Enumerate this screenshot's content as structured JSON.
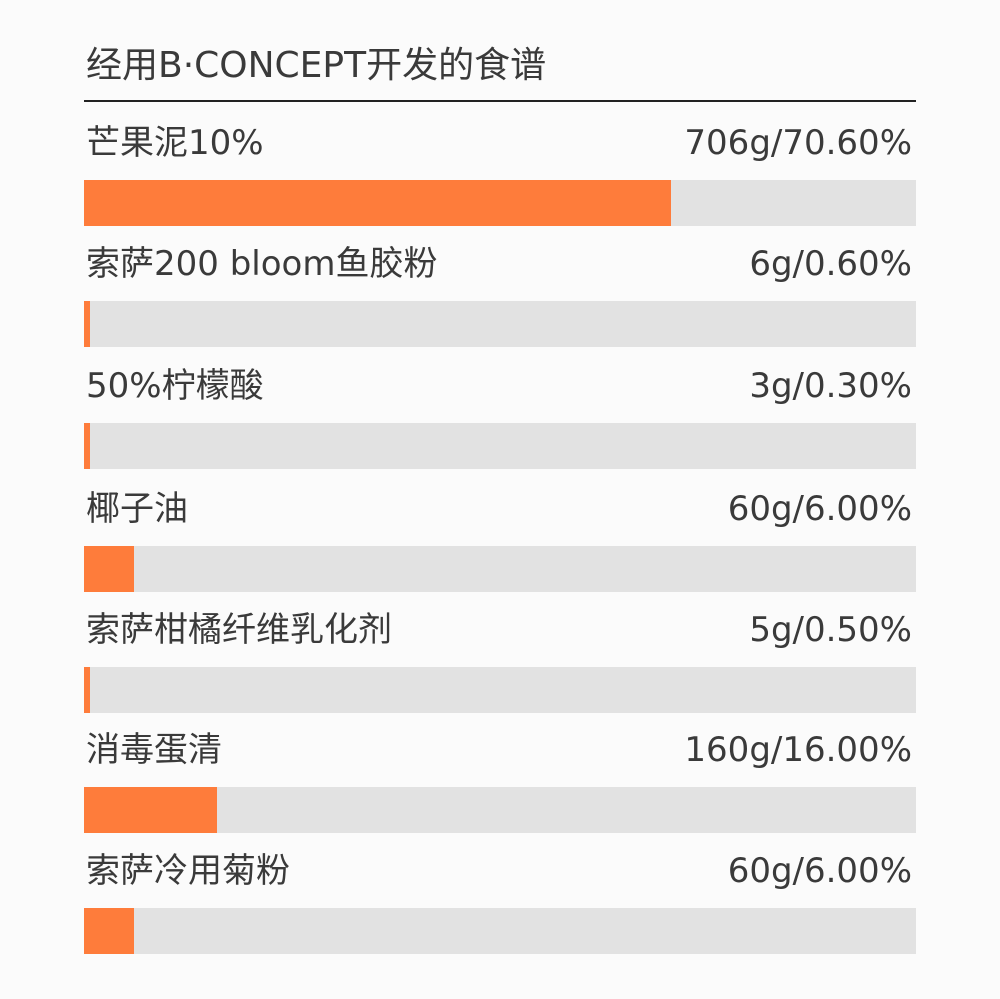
{
  "title": "经用B·CONCEPT开发的食谱",
  "colors": {
    "bar_fill": "#fe7c3b",
    "bar_track": "#e2e2e2",
    "rule": "#222222"
  },
  "chart_data": {
    "type": "bar",
    "orientation": "horizontal",
    "title": "经用B·CONCEPT开发的食谱",
    "xlim": [
      0,
      100
    ],
    "categories": [
      "芒果泥10%",
      "索萨200 bloom鱼胶粉",
      "50%柠檬酸",
      "椰子油",
      "索萨柑橘纤维乳化剂",
      "消毒蛋清",
      "索萨冷用菊粉"
    ],
    "grams": [
      706,
      6,
      3,
      60,
      5,
      160,
      60
    ],
    "values": [
      70.6,
      0.6,
      0.3,
      6.0,
      0.5,
      16.0,
      6.0
    ],
    "value_labels": [
      "706g/70.60%",
      "6g/0.60%",
      "3g/0.30%",
      "60g/6.00%",
      "5g/0.50%",
      "160g/16.00%",
      "60g/6.00%"
    ]
  },
  "items": [
    {
      "label": "芒果泥10%",
      "value_label": "706g/70.60%",
      "percent": 70.6
    },
    {
      "label": "索萨200 bloom鱼胶粉",
      "value_label": "6g/0.60%",
      "percent": 0.6
    },
    {
      "label": "50%柠檬酸",
      "value_label": "3g/0.30%",
      "percent": 0.3
    },
    {
      "label": "椰子油",
      "value_label": "60g/6.00%",
      "percent": 6.0
    },
    {
      "label": "索萨柑橘纤维乳化剂",
      "value_label": "5g/0.50%",
      "percent": 0.5
    },
    {
      "label": "消毒蛋清",
      "value_label": "160g/16.00%",
      "percent": 16.0
    },
    {
      "label": "索萨冷用菊粉",
      "value_label": "60g/6.00%",
      "percent": 6.0
    }
  ]
}
